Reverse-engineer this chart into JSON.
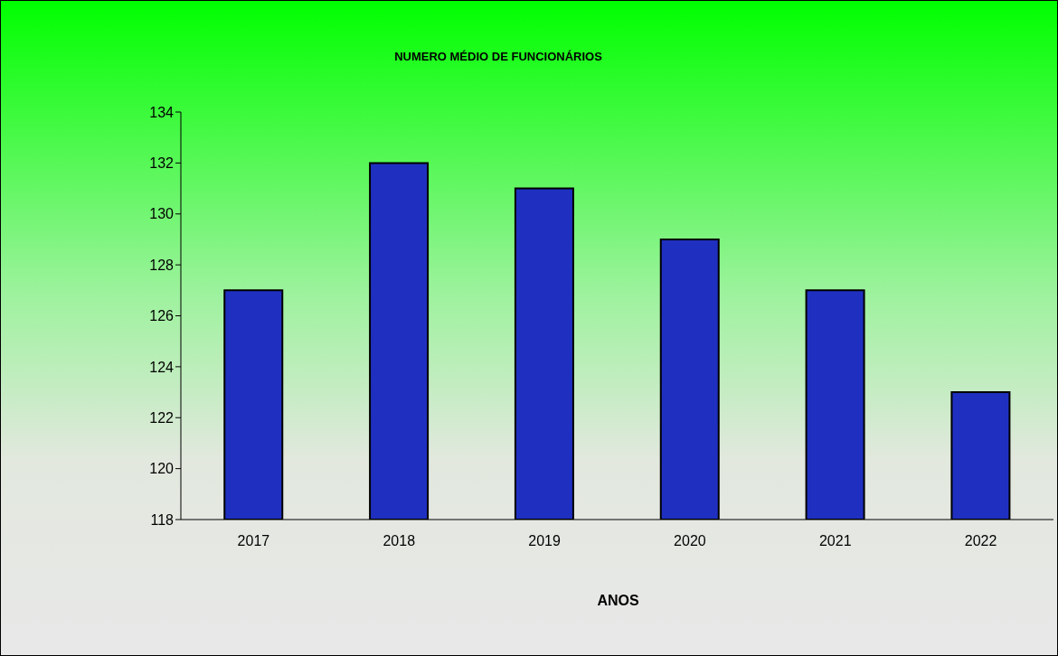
{
  "chart_data": {
    "type": "bar",
    "title": "NUMERO  MÉDIO DE FUNCIONÁRIOS",
    "xlabel": "ANOS",
    "categories": [
      "2017",
      "2018",
      "2019",
      "2020",
      "2021",
      "2022"
    ],
    "values": [
      127,
      132,
      131,
      129,
      127,
      123
    ],
    "color": "#1f30c0",
    "ylim": [
      118,
      134
    ],
    "yticks": [
      118,
      120,
      122,
      124,
      126,
      128,
      130,
      132,
      134
    ],
    "grid": false,
    "legend": false
  }
}
